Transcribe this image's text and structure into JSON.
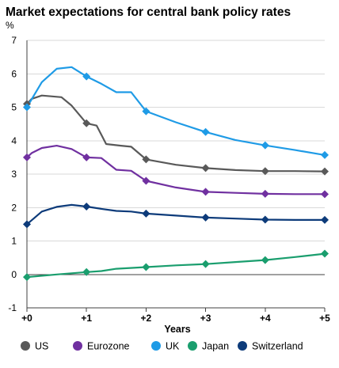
{
  "chart_data": {
    "type": "line",
    "title": "Market expectations for central bank policy rates",
    "ylabel": "%",
    "xlabel": "Years",
    "ylim": [
      -1,
      7
    ],
    "xlim": [
      0,
      5
    ],
    "yticks": [
      -1,
      0,
      1,
      2,
      3,
      4,
      5,
      6,
      7
    ],
    "xticks": [
      0,
      1,
      2,
      3,
      4,
      5
    ],
    "xtick_labels": [
      "+0",
      "+1",
      "+2",
      "+3",
      "+4",
      "+5"
    ],
    "grid": "horizontal",
    "legend_position": "bottom",
    "series": [
      {
        "name": "US",
        "color": "#595959",
        "x": [
          0,
          0.08,
          0.25,
          0.58,
          0.75,
          1.0,
          1.17,
          1.33,
          1.58,
          1.75,
          2.0,
          2.5,
          3.0,
          3.5,
          4.0,
          4.5,
          5.0
        ],
        "y": [
          5.1,
          5.25,
          5.35,
          5.3,
          5.05,
          4.52,
          4.45,
          3.9,
          3.85,
          3.82,
          3.44,
          3.28,
          3.18,
          3.12,
          3.09,
          3.09,
          3.08
        ],
        "markers_x": [
          0,
          1,
          2,
          3,
          4,
          5
        ],
        "markers_y": [
          5.1,
          4.52,
          3.44,
          3.18,
          3.09,
          3.08
        ]
      },
      {
        "name": "Eurozone",
        "color": "#7030a0",
        "x": [
          0,
          0.08,
          0.25,
          0.5,
          0.75,
          1.0,
          1.25,
          1.5,
          1.75,
          2.0,
          2.5,
          3.0,
          3.5,
          4.0,
          4.5,
          5.0
        ],
        "y": [
          3.5,
          3.63,
          3.78,
          3.85,
          3.75,
          3.5,
          3.48,
          3.13,
          3.1,
          2.8,
          2.6,
          2.47,
          2.44,
          2.41,
          2.4,
          2.4
        ],
        "markers_x": [
          0,
          1,
          2,
          3,
          4,
          5
        ],
        "markers_y": [
          3.5,
          3.5,
          2.8,
          2.47,
          2.41,
          2.4
        ]
      },
      {
        "name": "UK",
        "color": "#1f9be6",
        "x": [
          0,
          0.25,
          0.5,
          0.75,
          1.0,
          1.25,
          1.5,
          1.75,
          2.0,
          2.5,
          3.0,
          3.5,
          4.0,
          4.5,
          5.0
        ],
        "y": [
          5.0,
          5.75,
          6.15,
          6.2,
          5.92,
          5.7,
          5.45,
          5.45,
          4.88,
          4.55,
          4.26,
          4.02,
          3.86,
          3.72,
          3.57
        ],
        "markers_x": [
          0,
          1,
          2,
          3,
          4,
          5
        ],
        "markers_y": [
          5.0,
          5.92,
          4.88,
          4.26,
          3.86,
          3.57
        ]
      },
      {
        "name": "Japan",
        "color": "#1a9e6e",
        "x": [
          0,
          0.5,
          1.0,
          1.25,
          1.5,
          2.0,
          2.5,
          3.0,
          3.5,
          4.0,
          4.5,
          5.0
        ],
        "y": [
          -0.08,
          0.0,
          0.07,
          0.1,
          0.17,
          0.22,
          0.27,
          0.31,
          0.37,
          0.43,
          0.52,
          0.62
        ],
        "markers_x": [
          0,
          1,
          2,
          3,
          4,
          5
        ],
        "markers_y": [
          -0.08,
          0.07,
          0.22,
          0.31,
          0.43,
          0.62
        ]
      },
      {
        "name": "Switzerland",
        "color": "#0d3b7a",
        "x": [
          0,
          0.25,
          0.5,
          0.75,
          1.0,
          1.25,
          1.5,
          1.75,
          2.0,
          2.5,
          3.0,
          3.5,
          4.0,
          4.5,
          5.0
        ],
        "y": [
          1.5,
          1.88,
          2.02,
          2.08,
          2.03,
          1.96,
          1.9,
          1.88,
          1.82,
          1.76,
          1.7,
          1.67,
          1.64,
          1.63,
          1.63
        ],
        "markers_x": [
          0,
          1,
          2,
          3,
          4,
          5
        ],
        "markers_y": [
          1.5,
          2.03,
          1.82,
          1.7,
          1.64,
          1.63
        ]
      }
    ]
  }
}
